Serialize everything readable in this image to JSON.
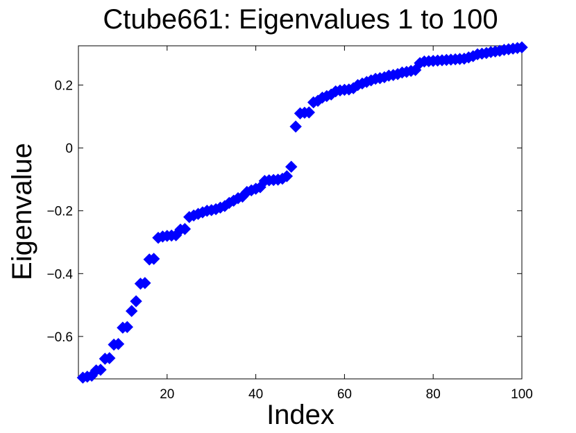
{
  "chart_data": {
    "type": "scatter",
    "title": "Ctube661: Eigenvalues 1 to 100",
    "xlabel": "Index",
    "ylabel": "Eigenvalue",
    "xlim": [
      0,
      100
    ],
    "ylim": [
      -0.735,
      0.325
    ],
    "xticks": [
      20,
      40,
      60,
      80,
      100
    ],
    "yticks": [
      -0.6,
      -0.4,
      -0.2,
      0,
      0.2
    ],
    "ytick_labels": [
      "−0.6",
      "−0.4",
      "−0.2",
      "0",
      "0.2"
    ],
    "grid": false,
    "marker": "diamond",
    "color": "#0000ff",
    "series": [
      {
        "x": [
          1,
          2,
          3,
          4,
          5,
          6,
          7,
          8,
          9,
          10,
          11,
          12,
          13,
          14,
          15,
          16,
          17,
          18,
          19,
          20,
          21,
          22,
          23,
          24,
          25,
          26,
          27,
          28,
          29,
          30,
          31,
          32,
          33,
          34,
          35,
          36,
          37,
          38,
          39,
          40,
          41,
          42,
          43,
          44,
          45,
          46,
          47,
          48,
          49,
          50,
          51,
          52,
          53,
          54,
          55,
          56,
          57,
          58,
          59,
          60,
          61,
          62,
          63,
          64,
          65,
          66,
          67,
          68,
          69,
          70,
          71,
          72,
          73,
          74,
          75,
          76,
          77,
          78,
          79,
          80,
          81,
          82,
          83,
          84,
          85,
          86,
          87,
          88,
          89,
          90,
          91,
          92,
          93,
          94,
          95,
          96,
          97,
          98,
          99,
          100
        ],
        "y": [
          -0.731,
          -0.728,
          -0.725,
          -0.708,
          -0.706,
          -0.671,
          -0.669,
          -0.626,
          -0.624,
          -0.572,
          -0.57,
          -0.519,
          -0.488,
          -0.432,
          -0.43,
          -0.355,
          -0.353,
          -0.286,
          -0.282,
          -0.28,
          -0.279,
          -0.278,
          -0.26,
          -0.258,
          -0.22,
          -0.215,
          -0.21,
          -0.205,
          -0.2,
          -0.198,
          -0.195,
          -0.19,
          -0.185,
          -0.175,
          -0.168,
          -0.16,
          -0.155,
          -0.14,
          -0.135,
          -0.13,
          -0.125,
          -0.105,
          -0.103,
          -0.102,
          -0.101,
          -0.098,
          -0.09,
          -0.06,
          0.068,
          0.11,
          0.112,
          0.113,
          0.145,
          0.15,
          0.16,
          0.165,
          0.17,
          0.18,
          0.183,
          0.185,
          0.186,
          0.19,
          0.2,
          0.205,
          0.21,
          0.215,
          0.22,
          0.222,
          0.225,
          0.23,
          0.232,
          0.235,
          0.24,
          0.242,
          0.245,
          0.248,
          0.27,
          0.275,
          0.276,
          0.277,
          0.278,
          0.279,
          0.28,
          0.281,
          0.282,
          0.283,
          0.284,
          0.288,
          0.292,
          0.298,
          0.3,
          0.302,
          0.305,
          0.307,
          0.309,
          0.312,
          0.314,
          0.316,
          0.318,
          0.32
        ]
      }
    ]
  }
}
